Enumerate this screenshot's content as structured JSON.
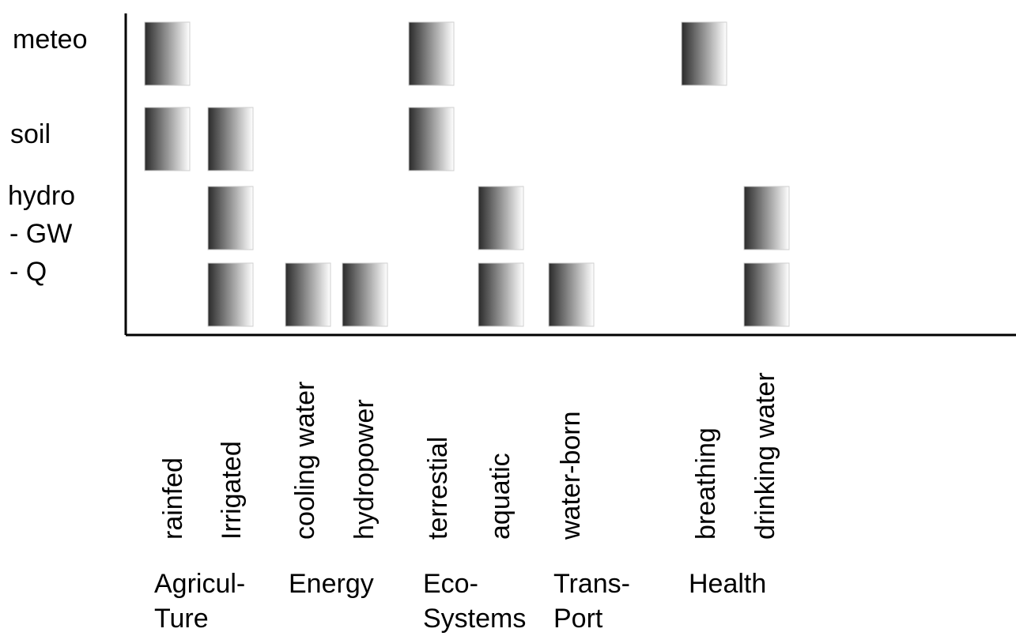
{
  "rows": [
    "meteo",
    "soil",
    "hydro",
    "- GW",
    "- Q"
  ],
  "columns": [
    "rainfed",
    "Irrigated",
    "cooling water",
    "hydropower",
    "terrestial",
    "aquatic",
    "water-born",
    "breathing",
    "drinking water"
  ],
  "groups": [
    {
      "line1": "Agricul-",
      "line2": "Ture"
    },
    {
      "line1": "Energy",
      "line2": ""
    },
    {
      "line1": "Eco-",
      "line2": "Systems"
    },
    {
      "line1": "Trans-",
      "line2": "Port"
    },
    {
      "line1": "Health",
      "line2": ""
    }
  ],
  "cells": [
    {
      "row": "meteo",
      "column": "rainfed"
    },
    {
      "row": "meteo",
      "column": "terrestial"
    },
    {
      "row": "meteo",
      "column": "breathing"
    },
    {
      "row": "soil",
      "column": "rainfed"
    },
    {
      "row": "soil",
      "column": "Irrigated"
    },
    {
      "row": "soil",
      "column": "terrestial"
    },
    {
      "row": "- GW",
      "column": "Irrigated"
    },
    {
      "row": "- GW",
      "column": "aquatic"
    },
    {
      "row": "- GW",
      "column": "drinking water"
    },
    {
      "row": "- Q",
      "column": "Irrigated"
    },
    {
      "row": "- Q",
      "column": "cooling water"
    },
    {
      "row": "- Q",
      "column": "hydropower"
    },
    {
      "row": "- Q",
      "column": "aquatic"
    },
    {
      "row": "- Q",
      "column": "water-born"
    },
    {
      "row": "- Q",
      "column": "drinking water"
    }
  ],
  "colors": {
    "box_dark": "#2a2a2a",
    "box_light": "#ffffff",
    "axis": "#000000"
  }
}
